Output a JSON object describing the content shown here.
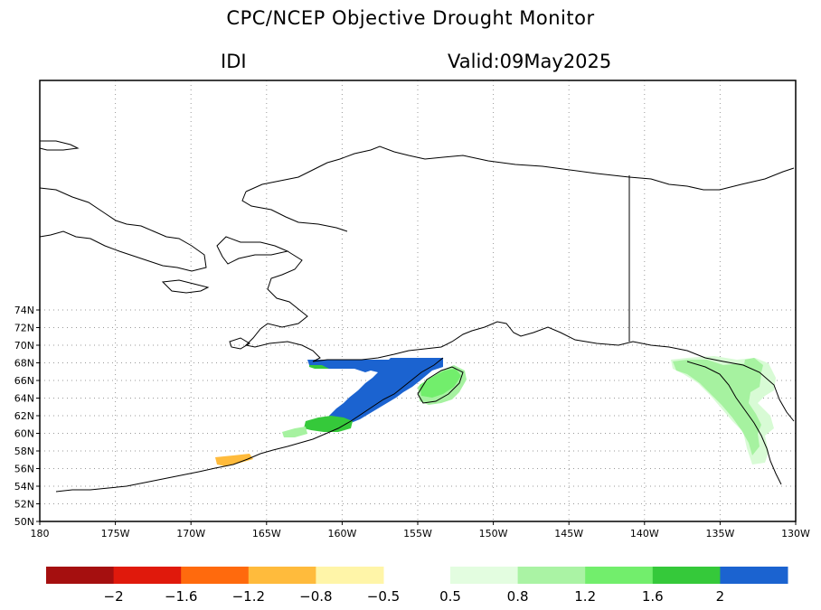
{
  "title": "CPC/NCEP Objective Drought Monitor",
  "index_label": "IDI",
  "valid_label": "Valid:09May2025",
  "map": {
    "lat_ticks": [
      "50N",
      "52N",
      "54N",
      "56N",
      "58N",
      "60N",
      "62N",
      "64N",
      "66N",
      "68N",
      "70N",
      "72N",
      "74N"
    ],
    "lon_ticks": [
      "180",
      "175W",
      "170W",
      "165W",
      "160W",
      "155W",
      "150W",
      "145W",
      "140W",
      "135W",
      "130W"
    ],
    "grid": "dotted",
    "colors": {
      "blue": "#1b63d0",
      "green": "#35c93a",
      "light_green": "#a6f2a0",
      "pale_green": "#d8fbd5",
      "orange": "#ffbb3c"
    }
  },
  "colorbar": {
    "dry": [
      {
        "color": "#a50f0f"
      },
      {
        "color": "#e0190c"
      },
      {
        "color": "#ff6a0d"
      },
      {
        "color": "#ffbb3c"
      },
      {
        "color": "#fff5a8"
      }
    ],
    "wet": [
      {
        "color": "#e3fde0"
      },
      {
        "color": "#aaf3a4"
      },
      {
        "color": "#72ee6c"
      },
      {
        "color": "#35c93a"
      },
      {
        "color": "#1b63d0"
      }
    ],
    "dry_labels": [
      "−2",
      "−1.6",
      "−1.2",
      "−0.8",
      "−0.5"
    ],
    "wet_labels": [
      "0.5",
      "0.8",
      "1.2",
      "1.6",
      "2"
    ]
  }
}
